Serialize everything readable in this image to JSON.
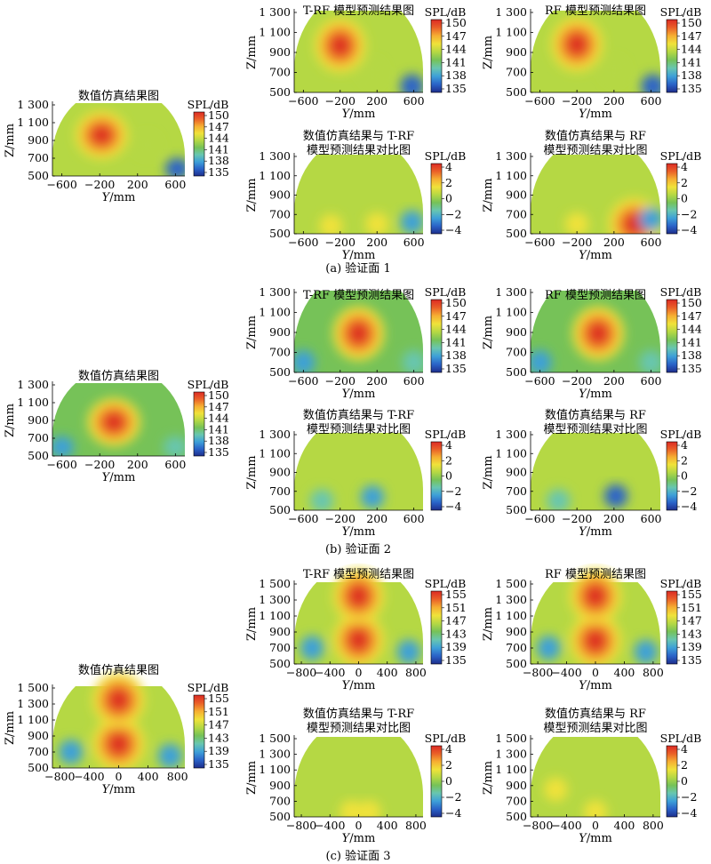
{
  "labels": {
    "units": "SPL/dB",
    "ylabel": "Z/mm",
    "xlabel_var": "Y",
    "xlabel_unit": "/mm"
  },
  "palette": [
    "#1e2e8c",
    "#2a63c8",
    "#3ea0d8",
    "#68c6b0",
    "#76c258",
    "#b5d844",
    "#f0e23a",
    "#f6ae32",
    "#ea6028",
    "#dc2a24"
  ],
  "chart_data": [
    {
      "id": "a-sim",
      "type": "heatmap",
      "title": "数值仿真结果图",
      "title2": "",
      "xticks": [
        "−600",
        "−200",
        "200",
        "600"
      ],
      "yticks": [
        "500",
        "700",
        "900",
        "1 100",
        "1 300"
      ],
      "ylim": [
        500,
        1300
      ],
      "xlim": [
        -700,
        700
      ],
      "colorbar": [
        "150",
        "147",
        "144",
        "141",
        "138",
        "135"
      ],
      "range": [
        135,
        151
      ],
      "hotspots": [
        {
          "x": -180,
          "z": 960,
          "v": 9
        },
        {
          "x": 300,
          "z": 850,
          "v": 5
        },
        {
          "x": 620,
          "z": 580,
          "v": 1
        }
      ],
      "base": 4.5
    },
    {
      "id": "a-trf",
      "type": "heatmap",
      "title": "T-RF 模型预测结果图",
      "title2": "",
      "xticks": [
        "−600",
        "−200",
        "200",
        "600"
      ],
      "yticks": [
        "500",
        "700",
        "900",
        "1 100",
        "1 300"
      ],
      "ylim": [
        500,
        1300
      ],
      "xlim": [
        -700,
        700
      ],
      "colorbar": [
        "150",
        "147",
        "144",
        "141",
        "138",
        "135"
      ],
      "range": [
        135,
        151
      ],
      "hotspots": [
        {
          "x": -200,
          "z": 970,
          "v": 9
        },
        {
          "x": 150,
          "z": 700,
          "v": 5
        },
        {
          "x": 580,
          "z": 560,
          "v": 1
        }
      ],
      "base": 4.5
    },
    {
      "id": "a-rf",
      "type": "heatmap",
      "title": "RF 模型预测结果图",
      "title2": "",
      "xticks": [
        "−600",
        "−200",
        "200",
        "600"
      ],
      "yticks": [
        "500",
        "700",
        "900",
        "1 100",
        "1 300"
      ],
      "ylim": [
        500,
        1300
      ],
      "xlim": [
        -700,
        700
      ],
      "colorbar": [
        "150",
        "147",
        "144",
        "141",
        "138",
        "135"
      ],
      "range": [
        135,
        151
      ],
      "hotspots": [
        {
          "x": -200,
          "z": 980,
          "v": 9
        },
        {
          "x": 200,
          "z": 720,
          "v": 5
        },
        {
          "x": 620,
          "z": 560,
          "v": 1
        }
      ],
      "base": 4.5
    },
    {
      "id": "a-dtrf",
      "type": "heatmap",
      "title": "数值仿真结果与 T-RF",
      "title2": "模型预测结果对比图",
      "xticks": [
        "−600",
        "−200",
        "200",
        "600"
      ],
      "yticks": [
        "500",
        "700",
        "900",
        "1 100",
        "1 300"
      ],
      "ylim": [
        500,
        1300
      ],
      "xlim": [
        -700,
        700
      ],
      "colorbar": [
        "4",
        "2",
        "0",
        "−2",
        "−4"
      ],
      "range": [
        -4,
        4
      ],
      "hotspots": [
        {
          "x": -300,
          "z": 580,
          "v": 6
        },
        {
          "x": 200,
          "z": 600,
          "v": 6
        },
        {
          "x": 580,
          "z": 620,
          "v": 2
        }
      ],
      "base": 4.5
    },
    {
      "id": "a-drf",
      "type": "heatmap",
      "title": "数值仿真结果与 RF",
      "title2": "模型预测结果对比图",
      "xticks": [
        "−600",
        "−200",
        "200",
        "600"
      ],
      "yticks": [
        "500",
        "700",
        "900",
        "1 100",
        "1 300"
      ],
      "ylim": [
        500,
        1300
      ],
      "xlim": [
        -700,
        700
      ],
      "colorbar": [
        "4",
        "2",
        "0",
        "−2",
        "−4"
      ],
      "range": [
        -4,
        4
      ],
      "hotspots": [
        {
          "x": 420,
          "z": 600,
          "v": 9
        },
        {
          "x": -200,
          "z": 600,
          "v": 6
        },
        {
          "x": 600,
          "z": 650,
          "v": 2
        }
      ],
      "base": 4.5
    },
    {
      "id": "b-sim",
      "type": "heatmap",
      "title": "数值仿真结果图",
      "title2": "",
      "xticks": [
        "−600",
        "−200",
        "200",
        "600"
      ],
      "yticks": [
        "500",
        "700",
        "900",
        "1 100",
        "1 300"
      ],
      "ylim": [
        500,
        1300
      ],
      "xlim": [
        -700,
        700
      ],
      "colorbar": [
        "150",
        "147",
        "144",
        "141",
        "138",
        "135"
      ],
      "range": [
        135,
        151
      ],
      "hotspots": [
        {
          "x": -50,
          "z": 880,
          "v": 9
        },
        {
          "x": -600,
          "z": 600,
          "v": 2
        },
        {
          "x": 600,
          "z": 600,
          "v": 3
        }
      ],
      "base": 4
    },
    {
      "id": "b-trf",
      "type": "heatmap",
      "title": "T-RF 模型预测结果图",
      "title2": "",
      "xticks": [
        "−600",
        "−200",
        "200",
        "600"
      ],
      "yticks": [
        "500",
        "700",
        "900",
        "1 100",
        "1 300"
      ],
      "ylim": [
        500,
        1300
      ],
      "xlim": [
        -700,
        700
      ],
      "colorbar": [
        "150",
        "147",
        "144",
        "141",
        "138",
        "135"
      ],
      "range": [
        135,
        151
      ],
      "hotspots": [
        {
          "x": 0,
          "z": 890,
          "v": 9
        },
        {
          "x": -600,
          "z": 600,
          "v": 2
        },
        {
          "x": 600,
          "z": 600,
          "v": 3
        }
      ],
      "base": 4
    },
    {
      "id": "b-rf",
      "type": "heatmap",
      "title": "RF 模型预测结果图",
      "title2": "",
      "xticks": [
        "−600",
        "−200",
        "200",
        "600"
      ],
      "yticks": [
        "500",
        "700",
        "900",
        "1 100",
        "1 300"
      ],
      "ylim": [
        500,
        1300
      ],
      "xlim": [
        -700,
        700
      ],
      "colorbar": [
        "150",
        "147",
        "144",
        "141",
        "138",
        "135"
      ],
      "range": [
        135,
        151
      ],
      "hotspots": [
        {
          "x": 30,
          "z": 890,
          "v": 9
        },
        {
          "x": -600,
          "z": 600,
          "v": 2
        },
        {
          "x": 600,
          "z": 600,
          "v": 3
        }
      ],
      "base": 4
    },
    {
      "id": "b-dtrf",
      "type": "heatmap",
      "title": "数值仿真结果与 T-RF",
      "title2": "模型预测结果对比图",
      "xticks": [
        "−600",
        "−200",
        "200",
        "600"
      ],
      "yticks": [
        "500",
        "700",
        "900",
        "1 100",
        "1 300"
      ],
      "ylim": [
        500,
        1300
      ],
      "xlim": [
        -700,
        700
      ],
      "colorbar": [
        "4",
        "2",
        "0",
        "−2",
        "−4"
      ],
      "range": [
        -4,
        4
      ],
      "hotspots": [
        {
          "x": 150,
          "z": 640,
          "v": 2
        },
        {
          "x": -400,
          "z": 600,
          "v": 3
        }
      ],
      "base": 4.5
    },
    {
      "id": "b-drf",
      "type": "heatmap",
      "title": "数值仿真结果与 RF",
      "title2": "模型预测结果对比图",
      "xticks": [
        "−600",
        "−200",
        "200",
        "600"
      ],
      "yticks": [
        "500",
        "700",
        "900",
        "1 100",
        "1 300"
      ],
      "ylim": [
        500,
        1300
      ],
      "xlim": [
        -700,
        700
      ],
      "colorbar": [
        "4",
        "2",
        "0",
        "−2",
        "−4"
      ],
      "range": [
        -4,
        4
      ],
      "hotspots": [
        {
          "x": 220,
          "z": 650,
          "v": 1
        },
        {
          "x": -400,
          "z": 600,
          "v": 3
        }
      ],
      "base": 4.5
    },
    {
      "id": "c-sim",
      "type": "heatmap",
      "title": "数值仿真结果图",
      "title2": "",
      "xticks": [
        "−800",
        "−400",
        "0",
        "400",
        "800"
      ],
      "yticks": [
        "500",
        "700",
        "900",
        "1 100",
        "1 300",
        "1 500"
      ],
      "ylim": [
        500,
        1500
      ],
      "xlim": [
        -900,
        900
      ],
      "colorbar": [
        "155",
        "151",
        "147",
        "143",
        "139",
        "135"
      ],
      "range": [
        135,
        155
      ],
      "hotspots": [
        {
          "x": 0,
          "z": 800,
          "v": 9
        },
        {
          "x": 0,
          "z": 1350,
          "v": 8
        },
        {
          "x": -650,
          "z": 700,
          "v": 2
        },
        {
          "x": 700,
          "z": 650,
          "v": 2
        }
      ],
      "base": 4.5
    },
    {
      "id": "c-trf",
      "type": "heatmap",
      "title": "T-RF 模型预测结果图",
      "title2": "",
      "xticks": [
        "−800",
        "−400",
        "0",
        "400",
        "800"
      ],
      "yticks": [
        "500",
        "700",
        "900",
        "1 100",
        "1 300",
        "1 500"
      ],
      "ylim": [
        500,
        1500
      ],
      "xlim": [
        -900,
        900
      ],
      "colorbar": [
        "155",
        "151",
        "147",
        "143",
        "139",
        "135"
      ],
      "range": [
        135,
        155
      ],
      "hotspots": [
        {
          "x": 0,
          "z": 800,
          "v": 9
        },
        {
          "x": 0,
          "z": 1350,
          "v": 8
        },
        {
          "x": -650,
          "z": 700,
          "v": 2
        },
        {
          "x": 700,
          "z": 650,
          "v": 2
        }
      ],
      "base": 4.5
    },
    {
      "id": "c-rf",
      "type": "heatmap",
      "title": "RF 模型预测结果图",
      "title2": "",
      "xticks": [
        "−800",
        "−400",
        "0",
        "400",
        "800"
      ],
      "yticks": [
        "500",
        "700",
        "900",
        "1 100",
        "1 300",
        "1 500"
      ],
      "ylim": [
        500,
        1500
      ],
      "xlim": [
        -900,
        900
      ],
      "colorbar": [
        "155",
        "151",
        "147",
        "143",
        "139",
        "135"
      ],
      "range": [
        135,
        155
      ],
      "hotspots": [
        {
          "x": 0,
          "z": 790,
          "v": 9
        },
        {
          "x": 0,
          "z": 1350,
          "v": 8
        },
        {
          "x": -650,
          "z": 700,
          "v": 2
        },
        {
          "x": 700,
          "z": 650,
          "v": 2
        }
      ],
      "base": 4.5
    },
    {
      "id": "c-dtrf",
      "type": "heatmap",
      "title": "数值仿真结果与 T-RF",
      "title2": "模型预测结果对比图",
      "xticks": [
        "−800",
        "−400",
        "0",
        "400",
        "800"
      ],
      "yticks": [
        "500",
        "700",
        "900",
        "1 100",
        "1 300",
        "1 500"
      ],
      "ylim": [
        500,
        1500
      ],
      "xlim": [
        -900,
        900
      ],
      "colorbar": [
        "4",
        "2",
        "0",
        "−2",
        "−4"
      ],
      "range": [
        -4,
        4
      ],
      "hotspots": [
        {
          "x": -100,
          "z": 560,
          "v": 6
        },
        {
          "x": 150,
          "z": 560,
          "v": 6
        }
      ],
      "base": 4.5
    },
    {
      "id": "c-drf",
      "type": "heatmap",
      "title": "数值仿真结果与 RF",
      "title2": "模型预测结果对比图",
      "xticks": [
        "−800",
        "−400",
        "0",
        "400",
        "800"
      ],
      "yticks": [
        "500",
        "700",
        "900",
        "1 100",
        "1 300",
        "1 500"
      ],
      "ylim": [
        500,
        1500
      ],
      "xlim": [
        -900,
        900
      ],
      "colorbar": [
        "4",
        "2",
        "0",
        "−2",
        "−4"
      ],
      "range": [
        -4,
        4
      ],
      "hotspots": [
        {
          "x": -550,
          "z": 850,
          "v": 6
        },
        {
          "x": 0,
          "z": 560,
          "v": 6
        }
      ],
      "base": 4.5
    }
  ],
  "captions": {
    "a": "(a) 验证面 1",
    "b": "(b) 验证面 2",
    "c": "(c) 验证面 3"
  }
}
